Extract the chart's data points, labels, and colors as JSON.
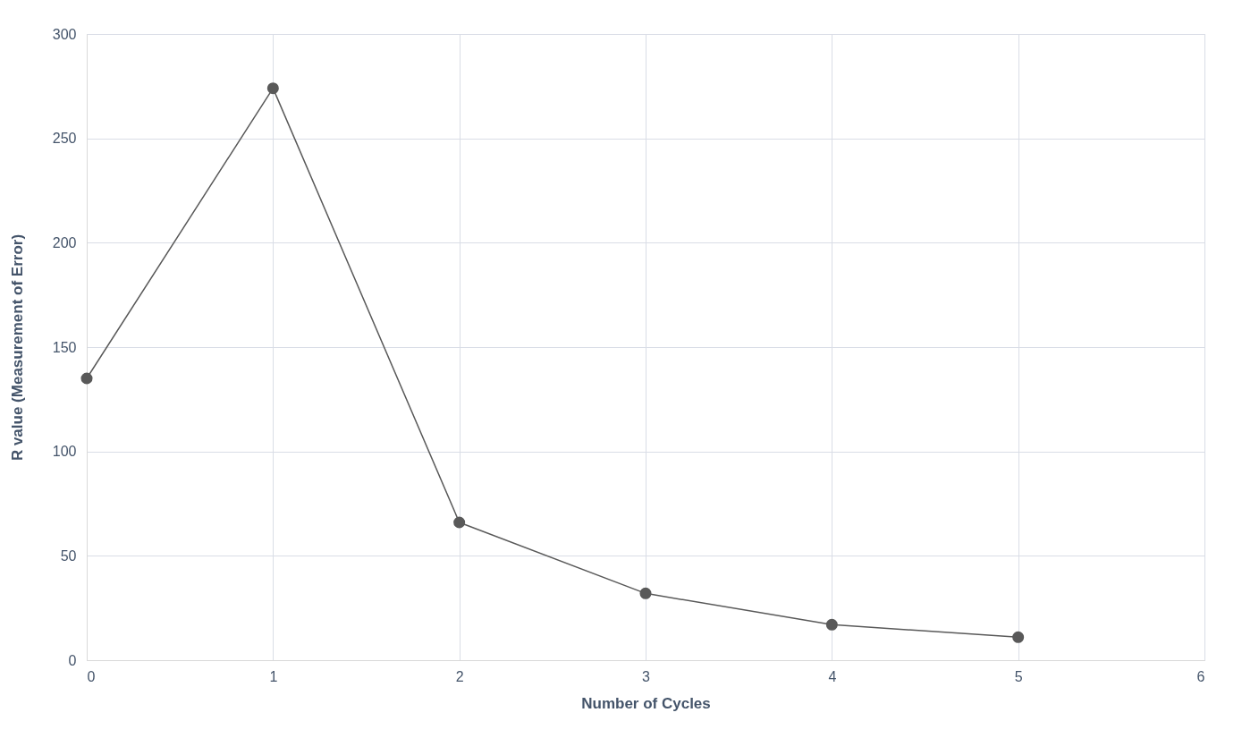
{
  "chart_data": {
    "type": "line",
    "xlabel": "Number of Cycles",
    "ylabel": "R value (Measurement of Error)",
    "x": [
      0,
      1,
      2,
      3,
      4,
      5
    ],
    "series": [
      {
        "color": "#595959",
        "values": [
          135,
          274,
          66,
          32,
          17,
          11
        ]
      }
    ],
    "xlim": [
      0,
      6
    ],
    "xticks": [
      0,
      1,
      2,
      3,
      4,
      5,
      6
    ],
    "ylim": [
      0,
      300
    ],
    "yticks": [
      0,
      50,
      100,
      150,
      200,
      250,
      300
    ],
    "grid": true,
    "marker": "circle",
    "line_style": "solid"
  }
}
